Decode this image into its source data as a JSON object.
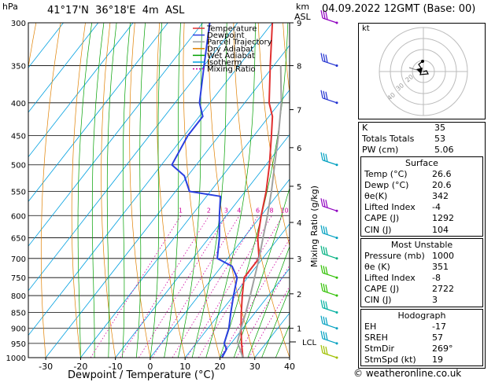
{
  "header": {
    "location": "41°17'N  36°18'E  4m  ASL",
    "hpa_label": "hPa",
    "km_label": "km",
    "asl_label": "ASL",
    "date": "04.09.2022  12GMT  (Base: 00)"
  },
  "legend": [
    {
      "name": "Temperature",
      "color": "#e03030"
    },
    {
      "name": "Dewpoint",
      "color": "#2a3fe0"
    },
    {
      "name": "Parcel Trajectory",
      "color": "#a0a0a0"
    },
    {
      "name": "Dry Adiabat",
      "color": "#e08000"
    },
    {
      "name": "Wet Adiabat",
      "color": "#00a000"
    },
    {
      "name": "Isotherm",
      "color": "#00a0e0"
    },
    {
      "name": "Mixing Ratio",
      "color": "#d000a0"
    }
  ],
  "chart_data": {
    "type": "line",
    "xlabel": "Dewpoint / Temperature (°C)",
    "ylabel": "hPa",
    "xlim": [
      -35,
      40
    ],
    "ylim": [
      1000,
      300
    ],
    "x_ticks": [
      -30,
      -20,
      -10,
      0,
      10,
      20,
      30,
      40
    ],
    "pressure_levels": [
      300,
      350,
      400,
      450,
      500,
      550,
      600,
      650,
      700,
      750,
      800,
      850,
      900,
      950,
      1000
    ],
    "km_ticks": [
      {
        "label": "9",
        "p": 300
      },
      {
        "label": "8",
        "p": 350
      },
      {
        "label": "7",
        "p": 410
      },
      {
        "label": "6",
        "p": 470
      },
      {
        "label": "5",
        "p": 540
      },
      {
        "label": "4",
        "p": 615
      },
      {
        "label": "3",
        "p": 700
      },
      {
        "label": "2",
        "p": 795
      },
      {
        "label": "1",
        "p": 900
      }
    ],
    "lcl": {
      "label": "LCL",
      "p": 945
    },
    "right_axis_label": "Mixing Ratio (g/kg)",
    "mixing_ratio_labels": [
      "1",
      "2",
      "3",
      "4",
      "6",
      "8",
      "10",
      "15",
      "20",
      "25"
    ],
    "series": [
      {
        "name": "Temperature",
        "color": "#e03030",
        "points": [
          [
            1000,
            26.6
          ],
          [
            950,
            23
          ],
          [
            900,
            19.5
          ],
          [
            850,
            16
          ],
          [
            800,
            12.5
          ],
          [
            750,
            9
          ],
          [
            730,
            9
          ],
          [
            700,
            9
          ],
          [
            650,
            4
          ],
          [
            600,
            0
          ],
          [
            550,
            -4
          ],
          [
            500,
            -9
          ],
          [
            450,
            -15
          ],
          [
            420,
            -19
          ],
          [
            400,
            -23
          ],
          [
            350,
            -31
          ],
          [
            300,
            -40
          ]
        ]
      },
      {
        "name": "Dewpoint",
        "color": "#2a3fe0",
        "points": [
          [
            1000,
            20.6
          ],
          [
            970,
            20
          ],
          [
            950,
            18
          ],
          [
            900,
            16
          ],
          [
            850,
            13
          ],
          [
            800,
            10
          ],
          [
            750,
            7
          ],
          [
            720,
            3
          ],
          [
            700,
            -3
          ],
          [
            650,
            -7
          ],
          [
            600,
            -12
          ],
          [
            560,
            -16
          ],
          [
            550,
            -26
          ],
          [
            520,
            -31
          ],
          [
            500,
            -37
          ],
          [
            450,
            -39
          ],
          [
            420,
            -39
          ],
          [
            400,
            -43
          ],
          [
            350,
            -50
          ],
          [
            300,
            -58
          ]
        ]
      },
      {
        "name": "Parcel Trajectory",
        "color": "#a0a0a0",
        "points": [
          [
            1000,
            26.6
          ],
          [
            945,
            21.5
          ],
          [
            900,
            19.5
          ],
          [
            850,
            17.3
          ],
          [
            800,
            14.8
          ],
          [
            750,
            12
          ],
          [
            700,
            9
          ],
          [
            650,
            5.5
          ],
          [
            600,
            1.8
          ],
          [
            550,
            -2.5
          ],
          [
            500,
            -7.5
          ],
          [
            450,
            -13
          ],
          [
            400,
            -19.5
          ],
          [
            350,
            -28
          ]
        ]
      }
    ]
  },
  "wind_barbs": [
    {
      "p": 300,
      "color": "#9000c0"
    },
    {
      "p": 350,
      "color": "#2030d0"
    },
    {
      "p": 400,
      "color": "#2030d0"
    },
    {
      "p": 500,
      "color": "#00a0c0"
    },
    {
      "p": 590,
      "color": "#9000c0"
    },
    {
      "p": 650,
      "color": "#00a0c0"
    },
    {
      "p": 700,
      "color": "#00b080"
    },
    {
      "p": 750,
      "color": "#30c000"
    },
    {
      "p": 800,
      "color": "#30c000"
    },
    {
      "p": 850,
      "color": "#00b0a0"
    },
    {
      "p": 900,
      "color": "#00a0c0"
    },
    {
      "p": 950,
      "color": "#00a0c0"
    },
    {
      "p": 1000,
      "color": "#a0c000"
    }
  ],
  "hodograph": {
    "label": "kt",
    "ring_labels": [
      "20",
      "30",
      "40"
    ]
  },
  "indices": [
    {
      "label": "K",
      "value": "35"
    },
    {
      "label": "Totals Totals",
      "value": "53"
    },
    {
      "label": "PW (cm)",
      "value": "5.06"
    }
  ],
  "surface": {
    "title": "Surface",
    "rows": [
      {
        "label": "Temp (°C)",
        "value": "26.6"
      },
      {
        "label": "Dewp (°C)",
        "value": "20.6"
      },
      {
        "label": "θe(K)",
        "value": "342"
      },
      {
        "label": "Lifted Index",
        "value": "-4"
      },
      {
        "label": "CAPE (J)",
        "value": "1292"
      },
      {
        "label": "CIN (J)",
        "value": "104"
      }
    ]
  },
  "most_unstable": {
    "title": "Most Unstable",
    "rows": [
      {
        "label": "Pressure (mb)",
        "value": "1000"
      },
      {
        "label": "θe (K)",
        "value": "351"
      },
      {
        "label": "Lifted Index",
        "value": "-8"
      },
      {
        "label": "CAPE (J)",
        "value": "2722"
      },
      {
        "label": "CIN (J)",
        "value": "3"
      }
    ]
  },
  "hodograph_table": {
    "title": "Hodograph",
    "rows": [
      {
        "label": "EH",
        "value": "-17"
      },
      {
        "label": "SREH",
        "value": "57"
      },
      {
        "label": "StmDir",
        "value": "269°"
      },
      {
        "label": "StmSpd (kt)",
        "value": "19"
      }
    ]
  },
  "credit": "© weatheronline.co.uk"
}
